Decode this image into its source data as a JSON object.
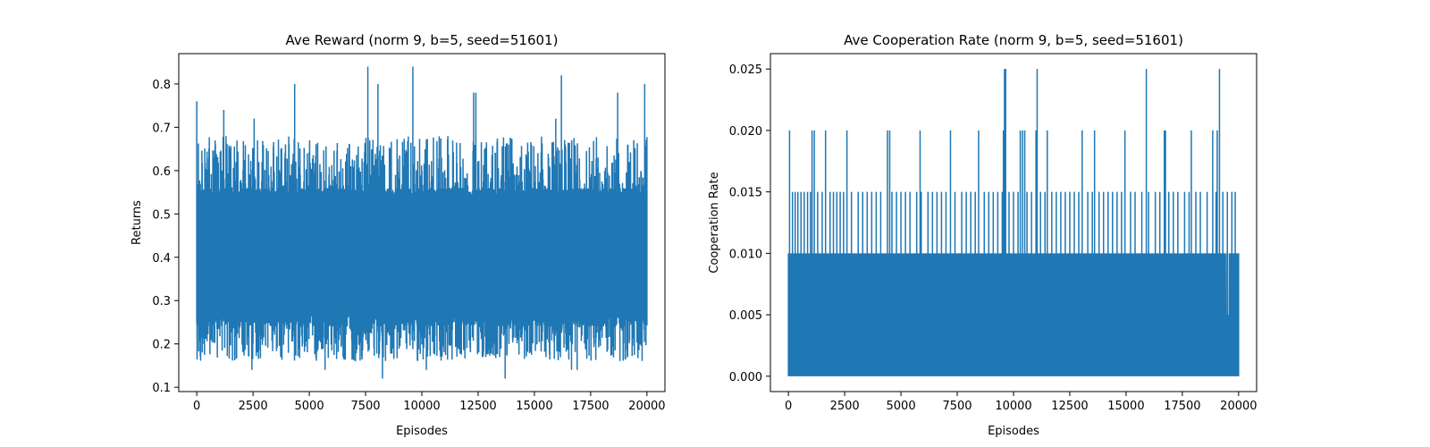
{
  "chart_data": [
    {
      "type": "line",
      "title": "Ave Reward (norm 9, b=5, seed=51601)",
      "xlabel": "Episodes",
      "ylabel": "Returns",
      "xlim": [
        -800,
        20800
      ],
      "ylim": [
        0.09,
        0.87
      ],
      "xticks": [
        0,
        2500,
        5000,
        7500,
        10000,
        12500,
        15000,
        17500,
        20000
      ],
      "yticks": [
        0.1,
        0.2,
        0.3,
        0.4,
        0.5,
        0.6,
        0.7,
        0.8
      ],
      "ytick_decimals": 1,
      "color": "#1f77b4",
      "grid": false,
      "series": [
        {
          "x_range": [
            0,
            20000
          ],
          "n_points": 20000,
          "band": [
            0.24,
            0.56
          ],
          "typical_range": [
            0.16,
            0.68
          ],
          "spikes_high": [
            [
              0,
              0.76
            ],
            [
              1200,
              0.74
            ],
            [
              2550,
              0.72
            ],
            [
              4350,
              0.8
            ],
            [
              7600,
              0.84
            ],
            [
              8050,
              0.8
            ],
            [
              9600,
              0.84
            ],
            [
              12300,
              0.78
            ],
            [
              12400,
              0.78
            ],
            [
              15950,
              0.72
            ],
            [
              16200,
              0.82
            ],
            [
              18700,
              0.78
            ],
            [
              19900,
              0.8
            ]
          ],
          "spikes_low": [
            [
              2450,
              0.14
            ],
            [
              5700,
              0.14
            ],
            [
              7050,
              0.16
            ],
            [
              8250,
              0.12
            ],
            [
              10200,
              0.14
            ],
            [
              13700,
              0.12
            ],
            [
              16650,
              0.14
            ],
            [
              16900,
              0.14
            ]
          ]
        }
      ]
    },
    {
      "type": "line",
      "title": "Ave Cooperation Rate (norm 9, b=5, seed=51601)",
      "xlabel": "Episodes",
      "ylabel": "Cooperation Rate",
      "xlim": [
        -800,
        20800
      ],
      "ylim": [
        -0.00125,
        0.02625
      ],
      "xticks": [
        0,
        2500,
        5000,
        7500,
        10000,
        12500,
        15000,
        17500,
        20000
      ],
      "yticks": [
        0.0,
        0.005,
        0.01,
        0.015,
        0.02,
        0.025
      ],
      "ytick_decimals": 3,
      "color": "#1f77b4",
      "grid": false,
      "series": [
        {
          "x_range": [
            0,
            20000
          ],
          "n_points": 20000,
          "levels": [
            0,
            0.005,
            0.01,
            0.015,
            0.02,
            0.025
          ],
          "band": [
            0,
            0.01
          ],
          "spikes_0015": [
            180,
            300,
            420,
            560,
            700,
            850,
            980,
            1300,
            1500,
            1850,
            2000,
            2150,
            2300,
            2450,
            2800,
            3100,
            3300,
            3500,
            3700,
            3900,
            4100,
            4600,
            4800,
            5000,
            5200,
            5400,
            5700,
            5900,
            6200,
            6400,
            6600,
            6800,
            7000,
            7400,
            7700,
            7900,
            8100,
            8300,
            8700,
            8900,
            9100,
            9300,
            9500,
            9800,
            10000,
            10200,
            10600,
            10800,
            11200,
            11400,
            11700,
            11900,
            12100,
            12300,
            12500,
            12700,
            12900,
            13300,
            13500,
            13800,
            14000,
            14200,
            14400,
            14600,
            14800,
            15200,
            15400,
            15700,
            16000,
            16300,
            16500,
            16900,
            17100,
            17300,
            17600,
            17800,
            18100,
            18300,
            18600,
            19000,
            19300,
            19500,
            19700,
            19850
          ],
          "spikes_0020": [
            50,
            1050,
            1150,
            1650,
            2600,
            4400,
            4500,
            5850,
            7200,
            8450,
            9550,
            10300,
            10400,
            10500,
            11000,
            11500,
            13050,
            13600,
            14950,
            16700,
            16750,
            17900,
            18850,
            19050
          ],
          "spikes_0025": [
            9600,
            9650,
            11050,
            15900,
            19150
          ]
        }
      ]
    }
  ]
}
